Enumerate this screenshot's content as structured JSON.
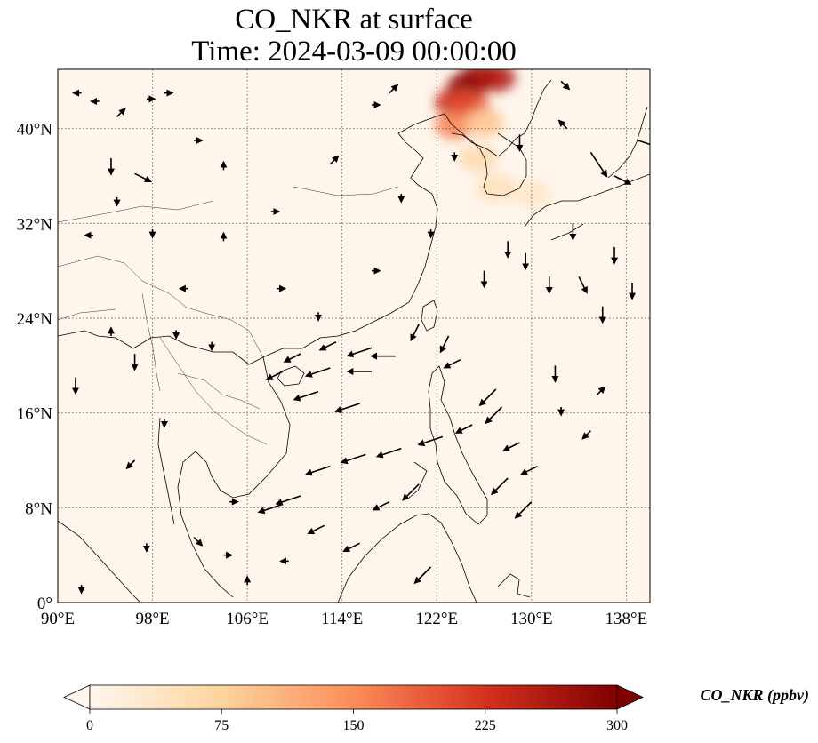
{
  "title_line1": "CO_NKR at surface",
  "title_line2": "Time: 2024-03-09 00:00:00",
  "map": {
    "projection": "PlateCarree",
    "lon_range": [
      90,
      140
    ],
    "lat_range": [
      0,
      45
    ],
    "lon_ticks": [
      {
        "value": 90,
        "label": "90°E"
      },
      {
        "value": 98,
        "label": "98°E"
      },
      {
        "value": 106,
        "label": "106°E"
      },
      {
        "value": 114,
        "label": "114°E"
      },
      {
        "value": 122,
        "label": "122°E"
      },
      {
        "value": 130,
        "label": "130°E"
      },
      {
        "value": 138,
        "label": "138°E"
      }
    ],
    "lat_ticks": [
      {
        "value": 0,
        "label": "0°"
      },
      {
        "value": 8,
        "label": "8°N"
      },
      {
        "value": 16,
        "label": "16°N"
      },
      {
        "value": 24,
        "label": "24°N"
      },
      {
        "value": 32,
        "label": "32°N"
      },
      {
        "value": 40,
        "label": "40°N"
      }
    ],
    "gridlines": "dotted",
    "background_color": "#fff5eb",
    "vector_color": "#000000"
  },
  "colorbar": {
    "label": "CO_NKR (ppbv)",
    "colormap": "OrRd",
    "min": 0,
    "max": 300,
    "extend": "both",
    "ticks": [
      {
        "value": 0,
        "label": "0"
      },
      {
        "value": 75,
        "label": "75"
      },
      {
        "value": 150,
        "label": "150"
      },
      {
        "value": 225,
        "label": "225"
      },
      {
        "value": 300,
        "label": "300"
      }
    ],
    "colors": [
      "#fff7ec",
      "#fdd49e",
      "#fc8d59",
      "#d7301f",
      "#7f0000"
    ]
  },
  "plume": [
    {
      "lon": 124.5,
      "lat": 43.5,
      "value": 300
    },
    {
      "lon": 125.5,
      "lat": 44.3,
      "value": 280
    },
    {
      "lon": 127.0,
      "lat": 44.3,
      "value": 260
    },
    {
      "lon": 123.5,
      "lat": 42.2,
      "value": 240
    },
    {
      "lon": 124.8,
      "lat": 42.0,
      "value": 200
    },
    {
      "lon": 123.5,
      "lat": 40.3,
      "value": 160
    },
    {
      "lon": 126.0,
      "lat": 40.5,
      "value": 90
    },
    {
      "lon": 125.5,
      "lat": 37.5,
      "value": 60
    },
    {
      "lon": 127.0,
      "lat": 35.0,
      "value": 50
    },
    {
      "lon": 130.0,
      "lat": 34.5,
      "value": 35
    }
  ],
  "wind_vectors": [
    {
      "lon": 92.0,
      "lat": 43.0,
      "u": -1,
      "v": 0
    },
    {
      "lon": 93.5,
      "lat": 42.3,
      "u": -1,
      "v": 0
    },
    {
      "lon": 95.0,
      "lat": 41.0,
      "u": 1,
      "v": 1
    },
    {
      "lon": 97.5,
      "lat": 42.5,
      "u": 1,
      "v": 0
    },
    {
      "lon": 99.0,
      "lat": 43.0,
      "u": 1,
      "v": 0
    },
    {
      "lon": 101.5,
      "lat": 39.0,
      "u": 1,
      "v": 0
    },
    {
      "lon": 94.5,
      "lat": 37.5,
      "u": 0,
      "v": -2
    },
    {
      "lon": 96.5,
      "lat": 36.2,
      "u": 2,
      "v": -1
    },
    {
      "lon": 95.0,
      "lat": 34.2,
      "u": 0,
      "v": -1
    },
    {
      "lon": 93.0,
      "lat": 31.0,
      "u": -1,
      "v": 0
    },
    {
      "lon": 98.0,
      "lat": 31.5,
      "u": 0,
      "v": -1
    },
    {
      "lon": 104.0,
      "lat": 36.5,
      "u": 0,
      "v": 1
    },
    {
      "lon": 108.0,
      "lat": 33.0,
      "u": 1,
      "v": 0
    },
    {
      "lon": 113.0,
      "lat": 37.0,
      "u": 1,
      "v": 1
    },
    {
      "lon": 116.5,
      "lat": 42.0,
      "u": 1,
      "v": 0
    },
    {
      "lon": 118.0,
      "lat": 43.0,
      "u": 1,
      "v": 1
    },
    {
      "lon": 119.0,
      "lat": 34.5,
      "u": 0,
      "v": -1
    },
    {
      "lon": 121.5,
      "lat": 31.5,
      "u": 0,
      "v": -1
    },
    {
      "lon": 123.5,
      "lat": 38.0,
      "u": 0,
      "v": -1
    },
    {
      "lon": 128.0,
      "lat": 30.5,
      "u": 0,
      "v": -2
    },
    {
      "lon": 129.5,
      "lat": 29.5,
      "u": 0,
      "v": -2
    },
    {
      "lon": 126.0,
      "lat": 28.0,
      "u": 0,
      "v": -2
    },
    {
      "lon": 131.5,
      "lat": 27.5,
      "u": 0,
      "v": -2
    },
    {
      "lon": 133.5,
      "lat": 32.0,
      "u": 0,
      "v": -2
    },
    {
      "lon": 134.0,
      "lat": 27.5,
      "u": 1,
      "v": -2
    },
    {
      "lon": 136.0,
      "lat": 25.0,
      "u": 0,
      "v": -2
    },
    {
      "lon": 137.0,
      "lat": 30.0,
      "u": 0,
      "v": -2
    },
    {
      "lon": 138.5,
      "lat": 27.0,
      "u": 0,
      "v": -2
    },
    {
      "lon": 133.0,
      "lat": 40.0,
      "u": -1,
      "v": 1
    },
    {
      "lon": 135.0,
      "lat": 38.0,
      "u": 2,
      "v": -3
    },
    {
      "lon": 137.0,
      "lat": 36.0,
      "u": 2,
      "v": -1
    },
    {
      "lon": 139.0,
      "lat": 39.0,
      "u": 3,
      "v": -1
    },
    {
      "lon": 132.5,
      "lat": 44.0,
      "u": 1,
      "v": -1
    },
    {
      "lon": 129.0,
      "lat": 39.5,
      "u": 0,
      "v": -2
    },
    {
      "lon": 113.5,
      "lat": 22.0,
      "u": -2,
      "v": -1
    },
    {
      "lon": 116.5,
      "lat": 21.5,
      "u": -3,
      "v": -1
    },
    {
      "lon": 118.5,
      "lat": 20.8,
      "u": -3,
      "v": 0
    },
    {
      "lon": 113.0,
      "lat": 19.8,
      "u": -3,
      "v": -1
    },
    {
      "lon": 116.5,
      "lat": 19.5,
      "u": -3,
      "v": 0
    },
    {
      "lon": 112.0,
      "lat": 17.8,
      "u": -3,
      "v": -1
    },
    {
      "lon": 115.5,
      "lat": 16.8,
      "u": -3,
      "v": -1
    },
    {
      "lon": 110.5,
      "lat": 21.0,
      "u": -2,
      "v": -1
    },
    {
      "lon": 109.0,
      "lat": 19.5,
      "u": -2,
      "v": -1
    },
    {
      "lon": 120.5,
      "lat": 23.5,
      "u": -1,
      "v": -2
    },
    {
      "lon": 123.0,
      "lat": 22.5,
      "u": -1,
      "v": -2
    },
    {
      "lon": 124.0,
      "lat": 20.5,
      "u": -2,
      "v": -1
    },
    {
      "lon": 127.0,
      "lat": 18.0,
      "u": -2,
      "v": -2
    },
    {
      "lon": 127.5,
      "lat": 16.5,
      "u": -2,
      "v": -2
    },
    {
      "lon": 125.0,
      "lat": 15.0,
      "u": -2,
      "v": -1
    },
    {
      "lon": 122.5,
      "lat": 14.0,
      "u": -3,
      "v": -1
    },
    {
      "lon": 119.0,
      "lat": 13.0,
      "u": -3,
      "v": -1
    },
    {
      "lon": 116.0,
      "lat": 12.5,
      "u": -3,
      "v": -1
    },
    {
      "lon": 113.0,
      "lat": 11.5,
      "u": -3,
      "v": -1
    },
    {
      "lon": 110.5,
      "lat": 9.0,
      "u": -3,
      "v": -1
    },
    {
      "lon": 109.0,
      "lat": 8.3,
      "u": -3,
      "v": -1
    },
    {
      "lon": 112.5,
      "lat": 6.5,
      "u": -2,
      "v": -1
    },
    {
      "lon": 115.5,
      "lat": 5.0,
      "u": -2,
      "v": -1
    },
    {
      "lon": 118.0,
      "lat": 8.5,
      "u": -2,
      "v": -1
    },
    {
      "lon": 120.5,
      "lat": 10.0,
      "u": -2,
      "v": -2
    },
    {
      "lon": 121.5,
      "lat": 3.0,
      "u": -2,
      "v": -2
    },
    {
      "lon": 129.0,
      "lat": 13.5,
      "u": -2,
      "v": -1
    },
    {
      "lon": 130.5,
      "lat": 11.5,
      "u": -2,
      "v": -1
    },
    {
      "lon": 128.0,
      "lat": 10.5,
      "u": -2,
      "v": -2
    },
    {
      "lon": 130.0,
      "lat": 8.5,
      "u": -2,
      "v": -2
    },
    {
      "lon": 132.5,
      "lat": 16.5,
      "u": 0,
      "v": -1
    },
    {
      "lon": 132.0,
      "lat": 20.0,
      "u": 0,
      "v": -2
    },
    {
      "lon": 135.5,
      "lat": 17.5,
      "u": 1,
      "v": 1
    },
    {
      "lon": 135.0,
      "lat": 14.5,
      "u": -1,
      "v": -1
    },
    {
      "lon": 103.0,
      "lat": 22.0,
      "u": 0,
      "v": -1
    },
    {
      "lon": 100.0,
      "lat": 23.0,
      "u": 0,
      "v": -1
    },
    {
      "lon": 96.5,
      "lat": 21.0,
      "u": 0,
      "v": -2
    },
    {
      "lon": 91.5,
      "lat": 19.0,
      "u": 0,
      "v": -2
    },
    {
      "lon": 94.5,
      "lat": 22.5,
      "u": 0,
      "v": 1
    },
    {
      "lon": 99.0,
      "lat": 15.5,
      "u": 0,
      "v": -1
    },
    {
      "lon": 96.5,
      "lat": 12.0,
      "u": -1,
      "v": -1
    },
    {
      "lon": 104.5,
      "lat": 8.5,
      "u": 1,
      "v": 0
    },
    {
      "lon": 101.5,
      "lat": 5.5,
      "u": 1,
      "v": -1
    },
    {
      "lon": 104.0,
      "lat": 4.0,
      "u": 1,
      "v": 0
    },
    {
      "lon": 97.5,
      "lat": 5.0,
      "u": 0,
      "v": -1
    },
    {
      "lon": 92.0,
      "lat": 1.5,
      "u": 0,
      "v": -1
    },
    {
      "lon": 106.0,
      "lat": 1.5,
      "u": 0,
      "v": 1
    },
    {
      "lon": 109.5,
      "lat": 3.5,
      "u": -1,
      "v": 0
    },
    {
      "lon": 108.5,
      "lat": 26.5,
      "u": 1,
      "v": 0
    },
    {
      "lon": 112.0,
      "lat": 24.5,
      "u": 0,
      "v": -1
    },
    {
      "lon": 116.5,
      "lat": 28.0,
      "u": 1,
      "v": 0
    },
    {
      "lon": 104.0,
      "lat": 30.5,
      "u": 0,
      "v": 1
    },
    {
      "lon": 101.0,
      "lat": 26.5,
      "u": -1,
      "v": 0
    }
  ]
}
